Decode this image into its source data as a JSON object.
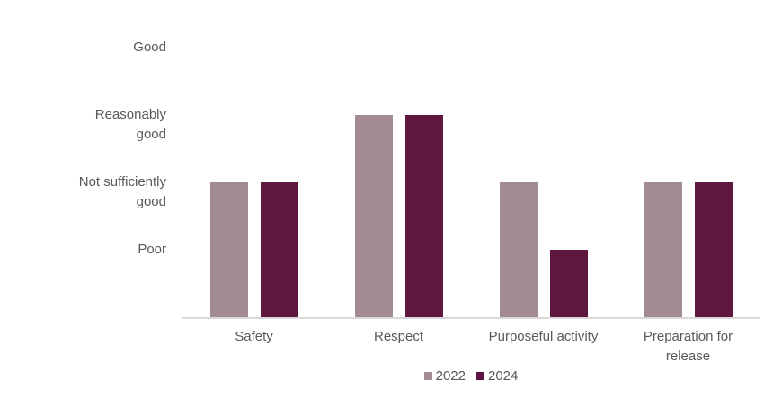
{
  "chart": {
    "background_color": "#ffffff",
    "text_color": "#595959",
    "axis_line_color": "#d9d9d9"
  },
  "chart_data": {
    "type": "bar",
    "title": "",
    "xlabel": "",
    "ylabel": "",
    "categories": [
      "Safety",
      "Respect",
      "Purposeful activity",
      "Preparation for release"
    ],
    "series": [
      {
        "name": "2022",
        "color": "#a18a92",
        "values": [
          2,
          3,
          2,
          2
        ]
      },
      {
        "name": "2024",
        "color": "#5e173e",
        "values": [
          2,
          3,
          1,
          2
        ]
      }
    ],
    "y_axis": {
      "tick_labels": [
        "Poor",
        "Not sufficiently good",
        "Reasonably good",
        "Good"
      ],
      "tick_values": [
        1,
        2,
        3,
        4
      ],
      "range": [
        0,
        4
      ],
      "grid": false
    },
    "legend": {
      "position": "bottom-center",
      "entries": [
        "2022",
        "2024"
      ]
    }
  }
}
